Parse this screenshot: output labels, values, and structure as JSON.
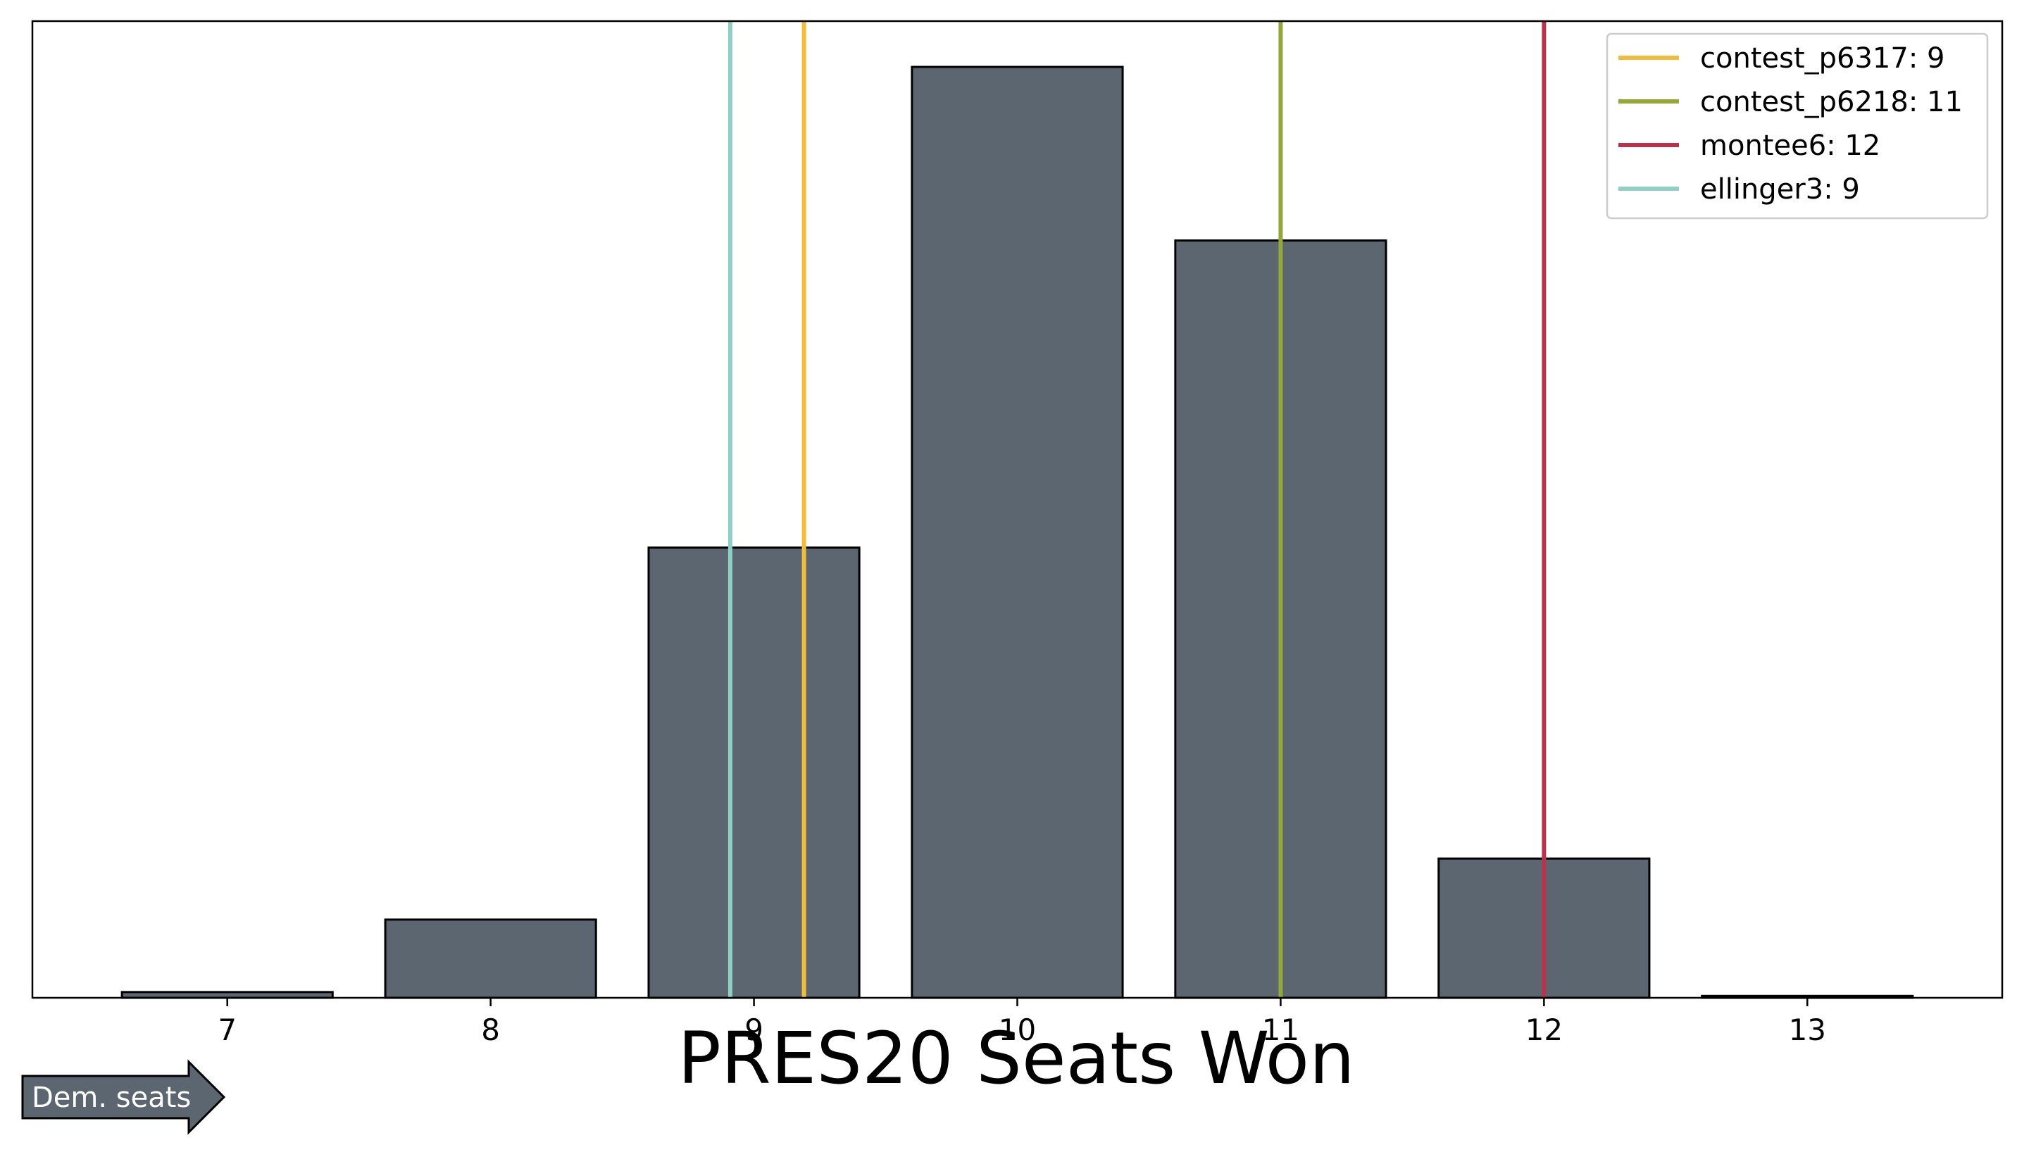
{
  "chart_data": {
    "type": "bar",
    "xlabel": "PRES20 Seats Won",
    "categories": [
      "7",
      "8",
      "9",
      "10",
      "11",
      "12",
      "13"
    ],
    "x": [
      7,
      8,
      9,
      10,
      11,
      12,
      13
    ],
    "values": [
      0.6,
      8.2,
      47.2,
      97.6,
      79.4,
      14.6,
      0.2
    ],
    "bar_color": "#5c6670",
    "bar_edge_color": "#000000",
    "xlim": [
      6.26,
      13.74
    ],
    "ylim": [
      0,
      102.4
    ],
    "y_ticks_shown": false,
    "grid": false,
    "legend_position": "top-right",
    "reference_lines": [
      {
        "label": "contest_p6317: 9",
        "x": 9.19,
        "color": "#f0be3c"
      },
      {
        "label": "contest_p6218: 11",
        "x": 11.0,
        "color": "#94a83a"
      },
      {
        "label": "montee6: 12",
        "x": 12.0,
        "color": "#b8344e"
      },
      {
        "label": "ellinger3: 9",
        "x": 8.91,
        "color": "#8ecfc6"
      }
    ],
    "direction_arrow": {
      "label": "Dem. seats",
      "color": "#5c6670"
    }
  }
}
